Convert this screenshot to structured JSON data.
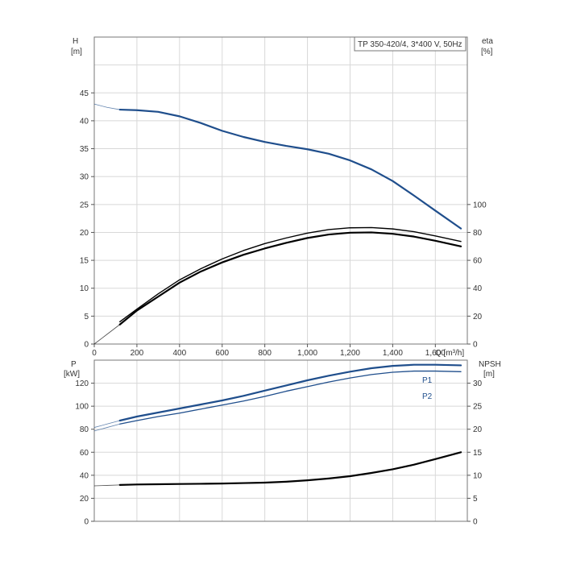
{
  "chart_data": [
    {
      "id": "upper",
      "type": "line",
      "title": "TP 350-420/4, 3*400 V, 50Hz",
      "xlabel": "Q [m³/h]",
      "ylabel_left_name": "H",
      "ylabel_left_unit": "[m]",
      "ylabel_right_name": "eta",
      "ylabel_right_unit": "[%]",
      "x_ticks": [
        0,
        200,
        400,
        600,
        800,
        1000,
        1200,
        1400,
        1600
      ],
      "x_tick_labels": [
        "0",
        "200",
        "400",
        "600",
        "800",
        "1,000",
        "1,200",
        "1,400",
        "1,600"
      ],
      "xlim": [
        0,
        1750
      ],
      "ylim_left": [
        0,
        55
      ],
      "y_left_ticks": [
        0,
        5,
        10,
        15,
        20,
        25,
        30,
        35,
        40,
        45
      ],
      "ylim_right": [
        0,
        100
      ],
      "y_right_ticks": [
        0,
        20,
        40,
        60,
        80,
        100
      ],
      "grid": true,
      "series": [
        {
          "key": "H",
          "axis": "left",
          "color": "#1f4e8c",
          "width": 2.2,
          "extension_x": [
            0,
            60,
            120
          ],
          "extension_y": [
            43,
            42.4,
            42
          ],
          "x": [
            120,
            200,
            300,
            400,
            500,
            600,
            700,
            800,
            900,
            1000,
            1100,
            1200,
            1300,
            1400,
            1500,
            1600,
            1720
          ],
          "y": [
            42,
            41.9,
            41.6,
            40.8,
            39.6,
            38.2,
            37.1,
            36.2,
            35.5,
            34.9,
            34.1,
            32.9,
            31.3,
            29.2,
            26.6,
            23.9,
            20.7
          ]
        },
        {
          "key": "eta-upper",
          "axis": "right",
          "color": "#000000",
          "width": 1.4,
          "x": [
            120,
            200,
            300,
            400,
            500,
            600,
            700,
            800,
            900,
            1000,
            1100,
            1200,
            1300,
            1400,
            1500,
            1600,
            1720
          ],
          "y": [
            16,
            25,
            36,
            46,
            54,
            61,
            67,
            72,
            76,
            79.5,
            82,
            83.3,
            83.5,
            82.5,
            80.5,
            77.5,
            73.5
          ]
        },
        {
          "key": "eta-lower",
          "axis": "right",
          "color": "#000000",
          "width": 2.2,
          "extension_x": [
            0,
            60,
            120
          ],
          "extension_y": [
            0,
            7,
            14
          ],
          "x": [
            120,
            200,
            300,
            400,
            500,
            600,
            700,
            800,
            900,
            1000,
            1100,
            1200,
            1300,
            1400,
            1500,
            1600,
            1720
          ],
          "y": [
            14,
            24,
            34,
            44,
            52,
            58.5,
            64,
            68.5,
            72.5,
            76,
            78.5,
            79.8,
            80,
            79,
            77,
            74,
            70
          ]
        }
      ]
    },
    {
      "id": "lower",
      "type": "line",
      "ylabel_left_name": "P",
      "ylabel_left_unit": "[kW]",
      "ylabel_right_name": "NPSH",
      "ylabel_right_unit": "[m]",
      "xlim": [
        0,
        1750
      ],
      "ylim_left": [
        0,
        140
      ],
      "y_left_ticks": [
        0,
        20,
        40,
        60,
        80,
        100,
        120
      ],
      "ylim_right": [
        0,
        35
      ],
      "y_right_ticks": [
        0,
        5,
        10,
        15,
        20,
        25,
        30
      ],
      "grid": true,
      "series": [
        {
          "key": "P1",
          "name": "P1",
          "axis": "left",
          "color": "#1f4e8c",
          "width": 2.2,
          "extension_x": [
            0,
            60,
            120
          ],
          "extension_y": [
            81.5,
            84.5,
            87.5
          ],
          "x": [
            120,
            200,
            300,
            400,
            500,
            600,
            700,
            800,
            900,
            1000,
            1100,
            1200,
            1300,
            1400,
            1500,
            1600,
            1720
          ],
          "y": [
            87.5,
            91,
            94.5,
            98,
            101.5,
            105,
            109,
            113.5,
            118,
            122.5,
            126.5,
            130,
            133,
            135,
            136,
            136,
            135.5
          ]
        },
        {
          "key": "P2",
          "name": "P2",
          "axis": "left",
          "color": "#1f4e8c",
          "width": 1.3,
          "extension_x": [
            0,
            60,
            120
          ],
          "extension_y": [
            78.5,
            81.5,
            84.5
          ],
          "x": [
            120,
            200,
            300,
            400,
            500,
            600,
            700,
            800,
            900,
            1000,
            1100,
            1200,
            1300,
            1400,
            1500,
            1600,
            1720
          ],
          "y": [
            84.5,
            87.5,
            91,
            94,
            97.5,
            101,
            104.5,
            108.5,
            113,
            117,
            121,
            124.5,
            127.5,
            129.5,
            130.5,
            130.5,
            130
          ]
        },
        {
          "key": "NPSH",
          "axis": "right",
          "color": "#000000",
          "width": 2.2,
          "extension_x": [
            0,
            60,
            120
          ],
          "extension_y": [
            7.7,
            7.8,
            7.9
          ],
          "x": [
            120,
            200,
            300,
            400,
            500,
            600,
            700,
            800,
            900,
            1000,
            1100,
            1200,
            1300,
            1400,
            1500,
            1600,
            1720
          ],
          "y": [
            7.9,
            8.0,
            8.05,
            8.1,
            8.15,
            8.2,
            8.3,
            8.4,
            8.6,
            8.9,
            9.3,
            9.8,
            10.5,
            11.3,
            12.3,
            13.5,
            15
          ]
        }
      ]
    }
  ]
}
